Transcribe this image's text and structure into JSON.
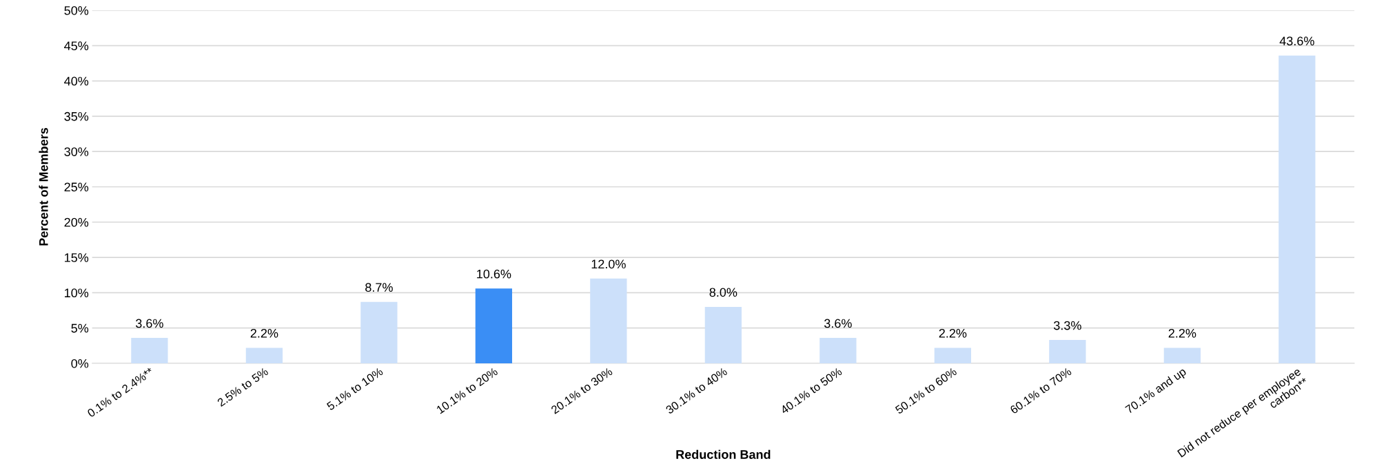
{
  "chart_data": {
    "type": "bar",
    "xlabel": "Reduction Band",
    "ylabel": "Percent of Members",
    "categories": [
      "0.1% to 2.4%**",
      "2.5% to 5%",
      "5.1% to 10%",
      "10.1% to 20%",
      "20.1% to 30%",
      "30.1% to 40%",
      "40.1% to 50%",
      "50.1% to 60%",
      "60.1% to 70%",
      "70.1% and up",
      "Did not reduce per employee carbon**"
    ],
    "values": [
      3.6,
      2.2,
      8.7,
      10.6,
      12.0,
      8.0,
      3.6,
      2.2,
      3.3,
      2.2,
      43.6
    ],
    "colors": [
      "#cce0fa",
      "#cce0fa",
      "#cce0fa",
      "#3a8ef5",
      "#cce0fa",
      "#cce0fa",
      "#cce0fa",
      "#cce0fa",
      "#cce0fa",
      "#cce0fa",
      "#cce0fa"
    ],
    "value_labels": [
      "3.6%",
      "2.2%",
      "8.7%",
      "10.6%",
      "12.0%",
      "8.0%",
      "3.6%",
      "2.2%",
      "3.3%",
      "2.2%",
      "43.6%"
    ],
    "ylim": [
      0,
      50
    ],
    "yticks": [
      {
        "value": 0,
        "label": "0%"
      },
      {
        "value": 5,
        "label": "5%"
      },
      {
        "value": 10,
        "label": "10%"
      },
      {
        "value": 15,
        "label": "15%"
      },
      {
        "value": 20,
        "label": "20%"
      },
      {
        "value": 25,
        "label": "25%"
      },
      {
        "value": 30,
        "label": "30%"
      },
      {
        "value": 35,
        "label": "35%"
      },
      {
        "value": 40,
        "label": "40%"
      },
      {
        "value": 45,
        "label": "45%"
      },
      {
        "value": 50,
        "label": "50%"
      }
    ],
    "grid": "y"
  }
}
